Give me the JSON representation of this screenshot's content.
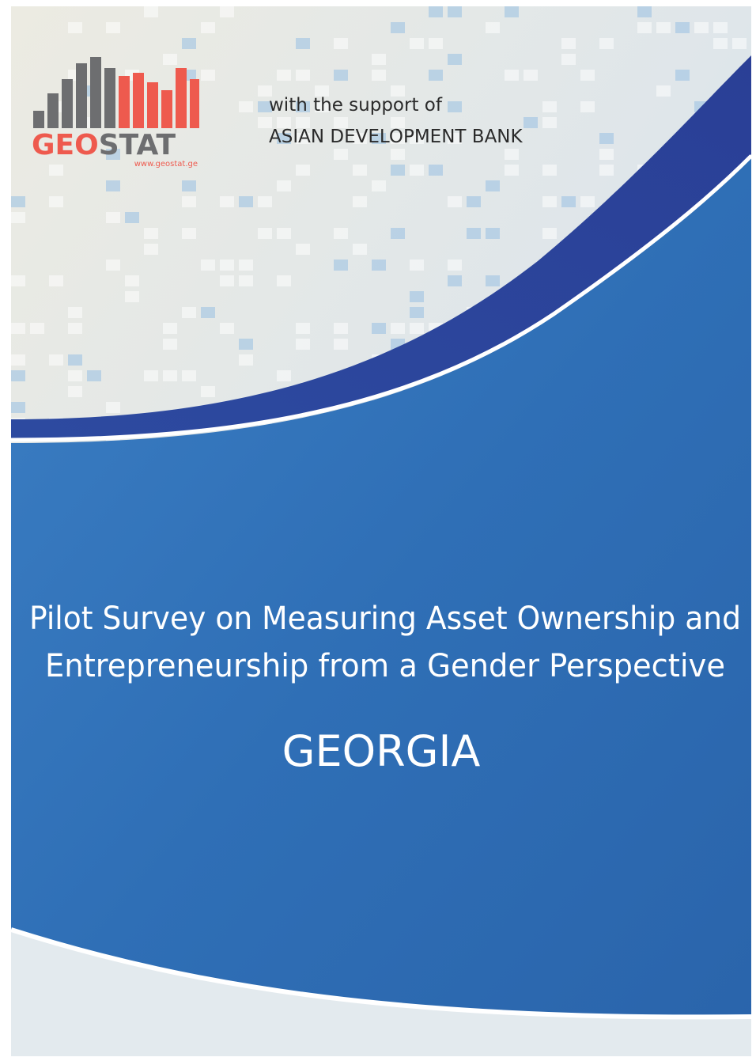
{
  "logo": {
    "name": [
      "GEO",
      "STAT"
    ],
    "url": "www.geostat.ge"
  },
  "support": {
    "intro": "with the support of",
    "organization": "ASIAN DEVELOPMENT BANK"
  },
  "title": {
    "lines": [
      "Pilot Survey on Measuring Asset Ownership and",
      "Entrepreneurship from a Gender Perspective"
    ]
  },
  "country": "GEORGIA"
}
